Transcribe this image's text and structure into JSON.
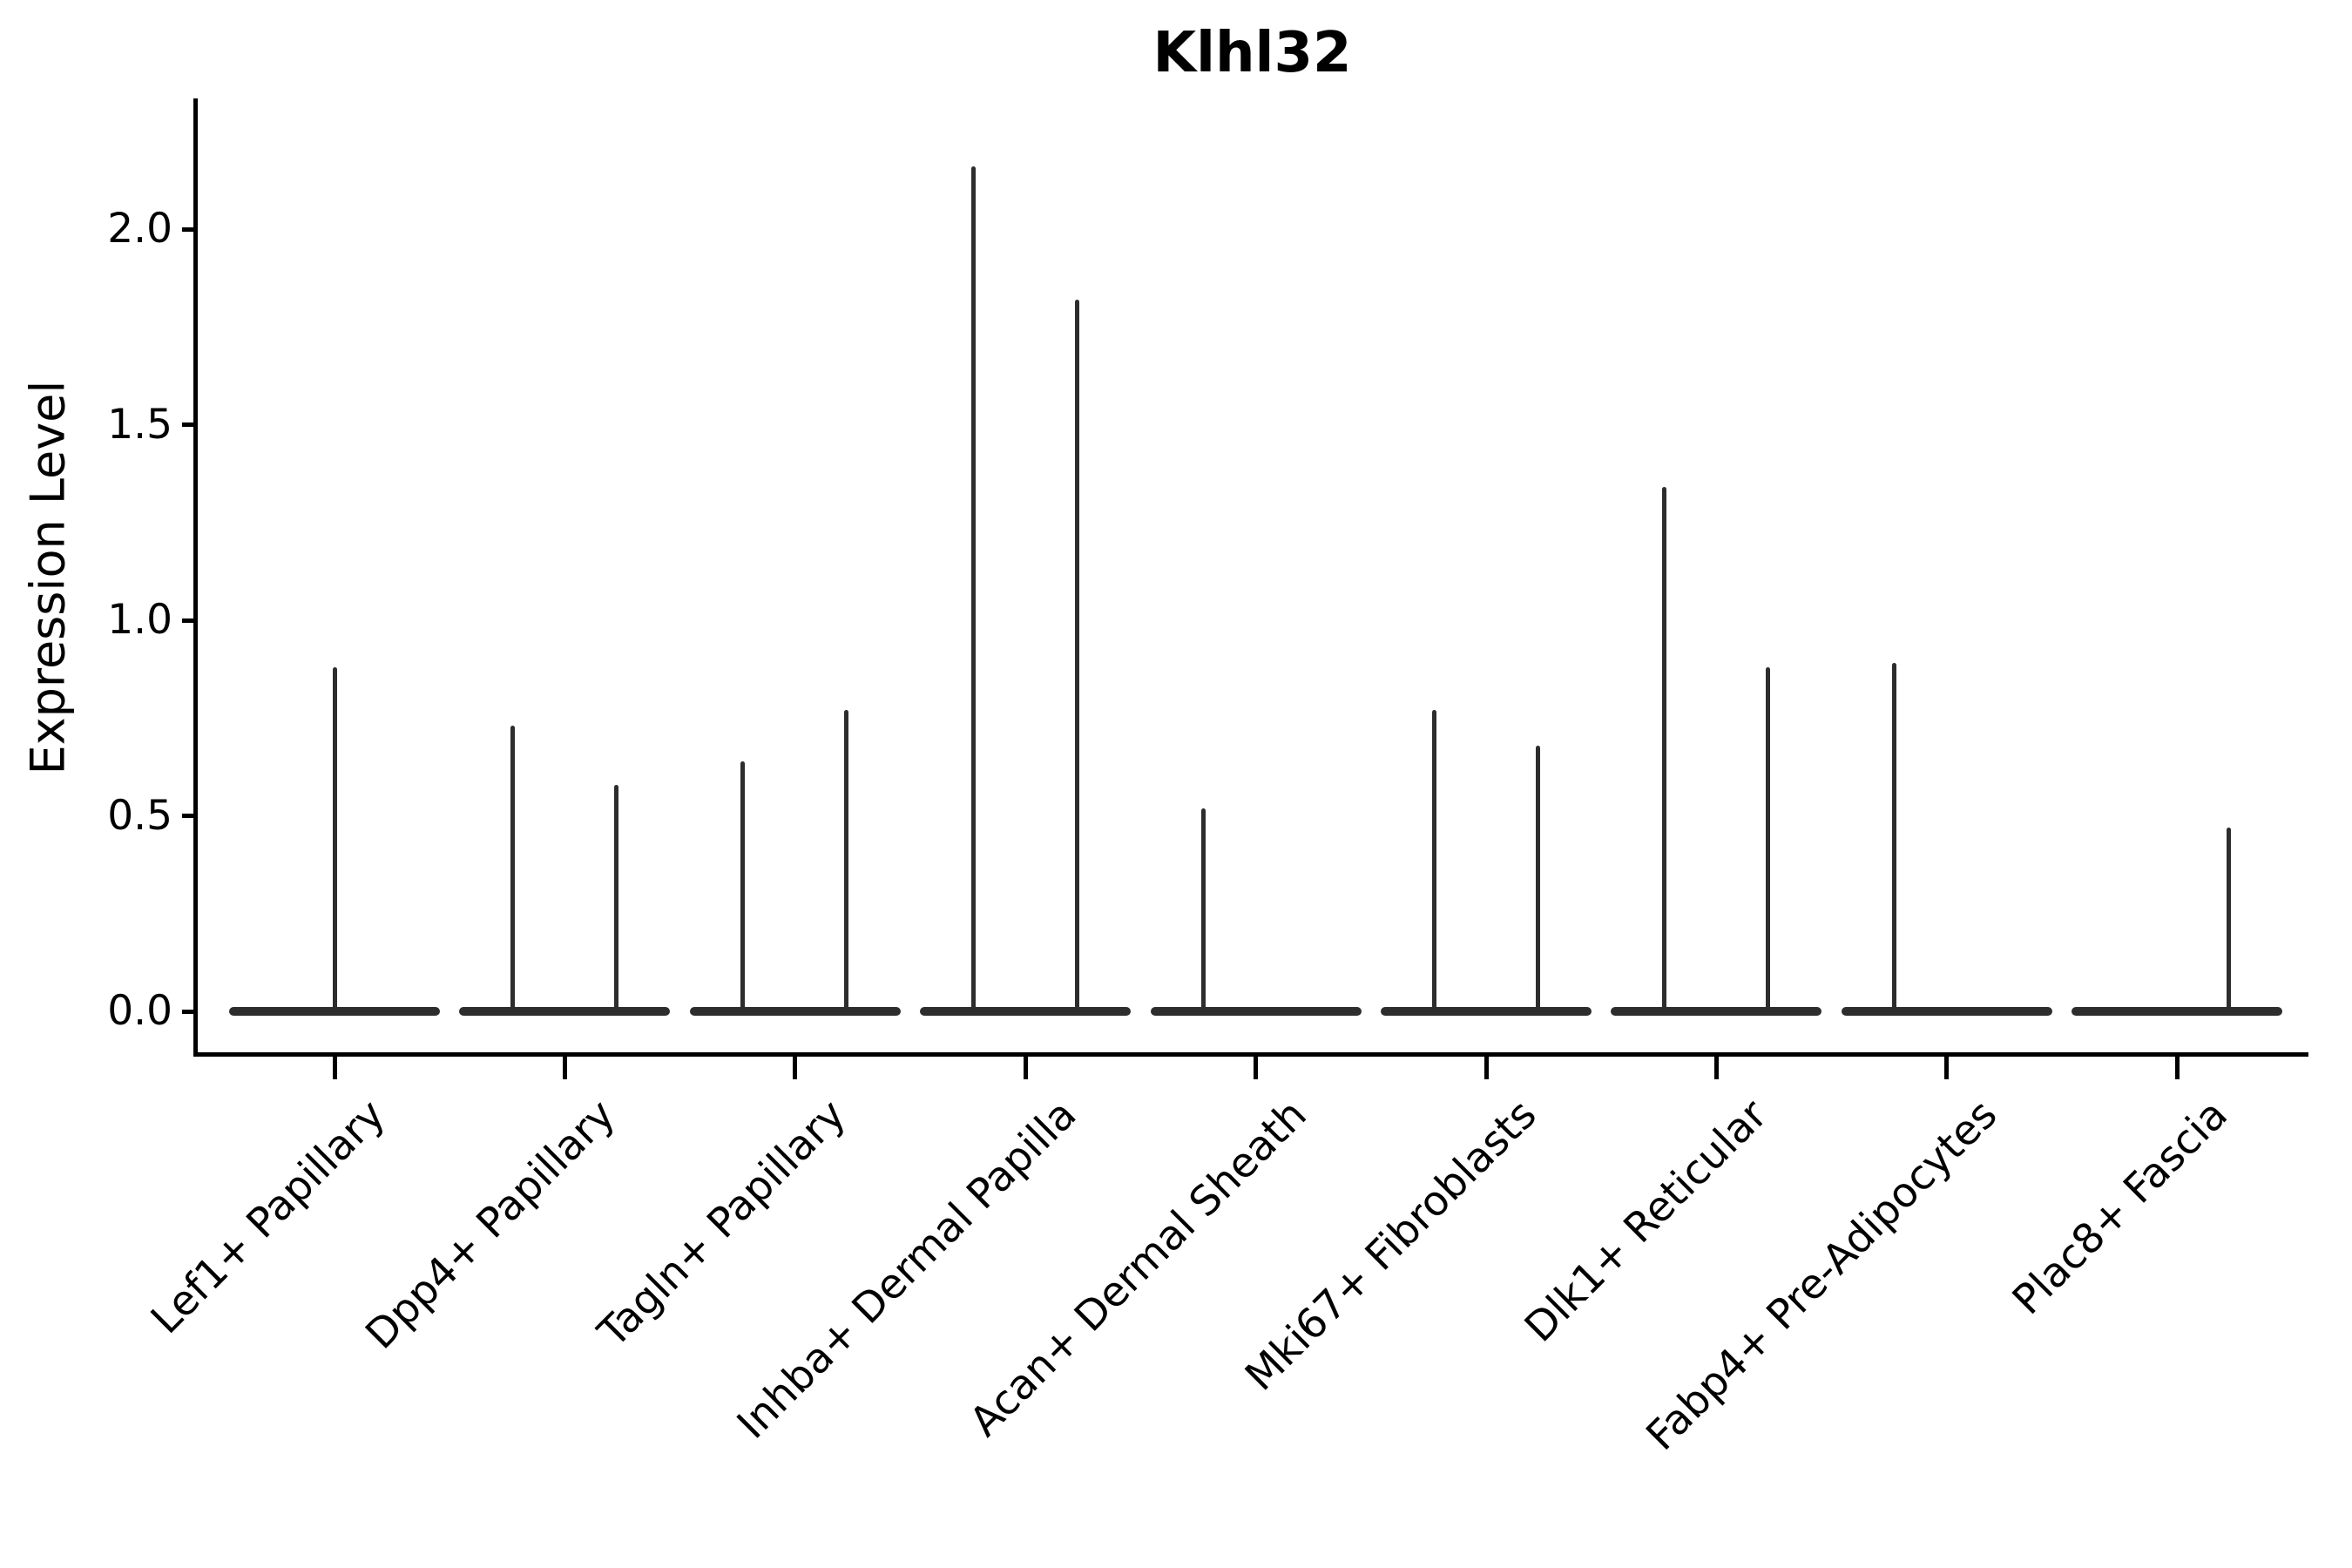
{
  "chart_data": {
    "type": "violin",
    "title": "Klhl32",
    "ylabel": "Expression Level",
    "xlabel": "",
    "ytick_labels": [
      "0.0",
      "0.5",
      "1.0",
      "1.5",
      "2.0"
    ],
    "ytick_values": [
      0.0,
      0.5,
      1.0,
      1.5,
      2.0
    ],
    "ylim": [
      -0.11,
      2.32
    ],
    "grid": false,
    "legend": "none",
    "violin_color": "#2d2d2d",
    "axis_color": "#000000",
    "violin_shape": "flat base at expression 0 with a single thin density spike rising to the peak value; two dodged violin slots per category, full-width when only one violin is present",
    "categories": [
      {
        "label": "Lef1+ Papillary",
        "violins": [
          {
            "position": "full",
            "peak": 0.88
          }
        ]
      },
      {
        "label": "Dpp4+ Papillary",
        "violins": [
          {
            "position": "left",
            "peak": 0.73
          },
          {
            "position": "right",
            "peak": 0.58
          }
        ]
      },
      {
        "label": "Tagln+ Papillary",
        "violins": [
          {
            "position": "left",
            "peak": 0.64
          },
          {
            "position": "right",
            "peak": 0.77
          }
        ]
      },
      {
        "label": "Inhba+ Dermal Papilla",
        "violins": [
          {
            "position": "left",
            "peak": 2.16
          },
          {
            "position": "right",
            "peak": 1.82
          }
        ]
      },
      {
        "label": "Acan+ Dermal Sheath",
        "violins": [
          {
            "position": "left",
            "peak": 0.52
          },
          {
            "position": "right",
            "peak": 0.0
          }
        ]
      },
      {
        "label": "Mki67+ Fibroblasts",
        "violins": [
          {
            "position": "left",
            "peak": 0.77
          },
          {
            "position": "right",
            "peak": 0.68
          }
        ]
      },
      {
        "label": "Dlk1+ Reticular",
        "violins": [
          {
            "position": "left",
            "peak": 1.34
          },
          {
            "position": "right",
            "peak": 0.88
          }
        ]
      },
      {
        "label": "Fabp4+ Pre-Adipocytes",
        "violins": [
          {
            "position": "left",
            "peak": 0.89
          },
          {
            "position": "right",
            "peak": 0.0
          }
        ]
      },
      {
        "label": "Plac8+ Fascia",
        "violins": [
          {
            "position": "left",
            "peak": 0.0
          },
          {
            "position": "right",
            "peak": 0.47
          }
        ]
      }
    ]
  }
}
